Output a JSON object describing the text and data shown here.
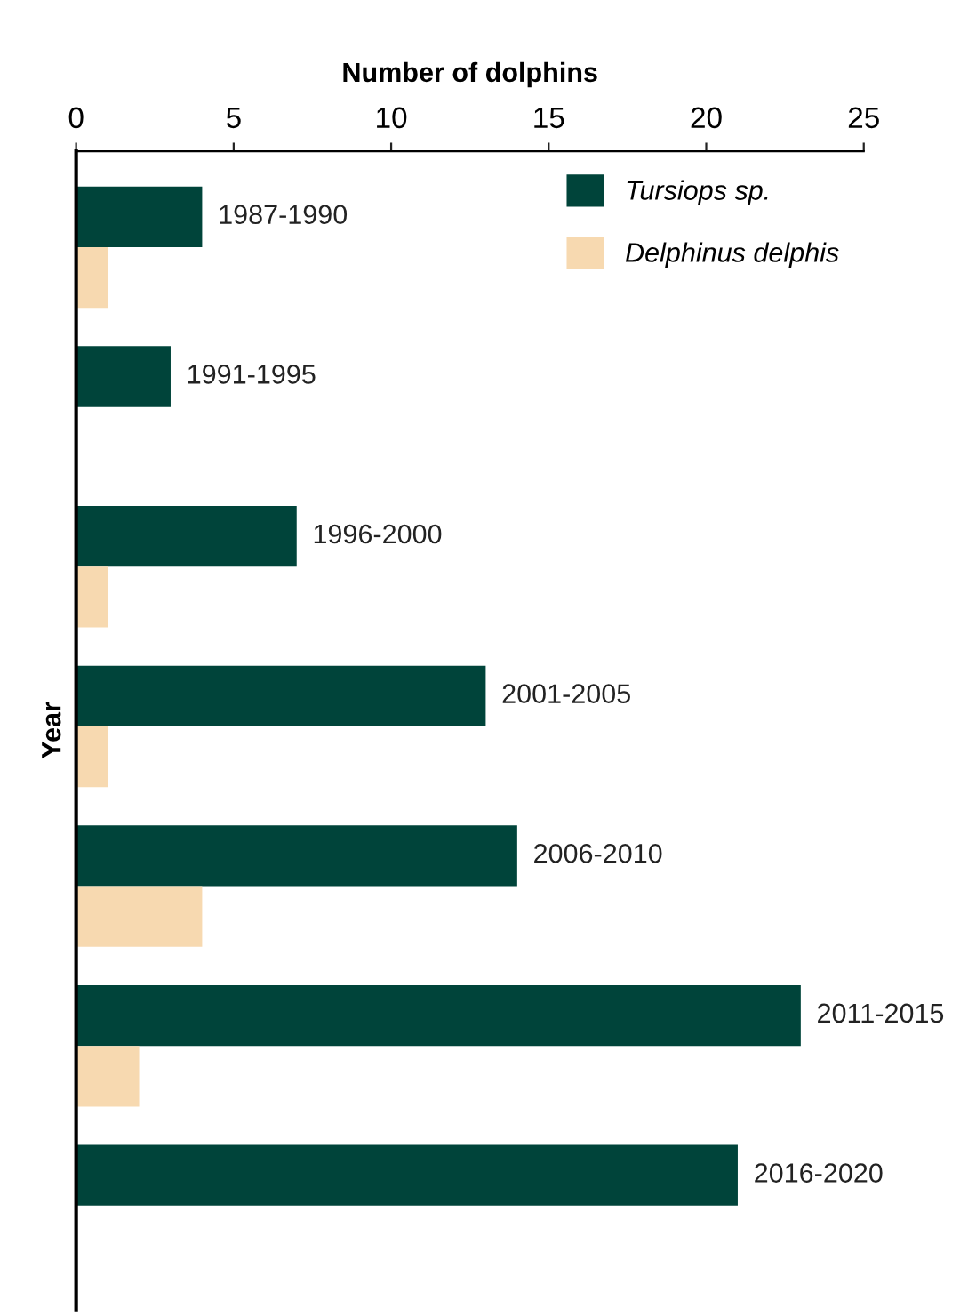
{
  "chart_data": {
    "type": "bar",
    "orientation": "horizontal",
    "xlabel": "Number of dolphins",
    "ylabel": "Year",
    "categories": [
      "1987-1990",
      "1991-1995",
      "1996-2000",
      "2001-2005",
      "2006-2010",
      "2011-2015",
      "2016-2020"
    ],
    "series": [
      {
        "name": "Tursiops sp.",
        "color": "#00443a",
        "values": [
          4,
          3,
          7,
          13,
          14,
          23,
          21
        ]
      },
      {
        "name": "Delphinus delphis",
        "color": "#f7d9b0",
        "values": [
          1,
          0,
          1,
          1,
          4,
          2,
          0
        ]
      }
    ],
    "xlim": [
      0,
      25
    ],
    "xticks": [
      0,
      5,
      10,
      15,
      20,
      25
    ],
    "legend": "top right",
    "grid": false
  }
}
